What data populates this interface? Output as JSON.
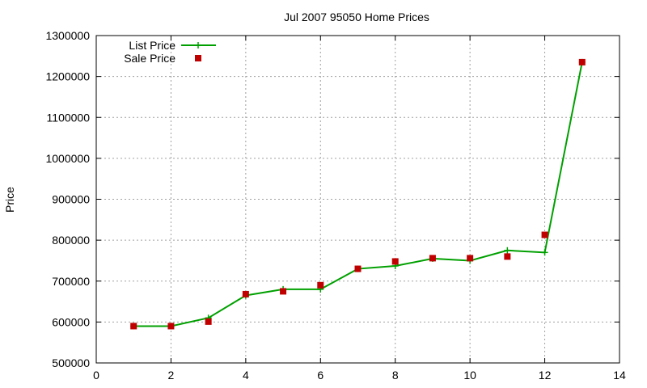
{
  "chart_data": {
    "type": "line",
    "title": "Jul 2007 95050 Home Prices",
    "xlabel": "",
    "ylabel": "Price",
    "xlim": [
      0,
      14
    ],
    "ylim": [
      500000,
      1300000
    ],
    "x_ticks": [
      0,
      2,
      4,
      6,
      8,
      10,
      12,
      14
    ],
    "y_ticks": [
      500000,
      600000,
      700000,
      800000,
      900000,
      1000000,
      1100000,
      1200000,
      1300000
    ],
    "x_tick_labels": [
      "0",
      "2",
      "4",
      "6",
      "8",
      "10",
      "12",
      "14"
    ],
    "y_tick_labels": [
      "500000",
      "600000",
      "700000",
      "800000",
      "900000",
      "1000000",
      "1100000",
      "1200000",
      "1300000"
    ],
    "grid": true,
    "legend_position": "top-left",
    "series": [
      {
        "name": "List Price",
        "style": "line-with-plus-markers",
        "color": "#00a000",
        "x": [
          1,
          2,
          3,
          4,
          5,
          6,
          7,
          8,
          9,
          10,
          11,
          12,
          13
        ],
        "values": [
          590000,
          590000,
          610000,
          665000,
          680000,
          680000,
          730000,
          737000,
          755000,
          750000,
          775000,
          770000,
          1235000
        ]
      },
      {
        "name": "Sale Price",
        "style": "square-markers",
        "color": "#c00000",
        "x": [
          1,
          2,
          3,
          4,
          5,
          6,
          7,
          8,
          9,
          10,
          11,
          12,
          13
        ],
        "values": [
          590000,
          590000,
          601000,
          668000,
          675000,
          690000,
          730000,
          748000,
          756000,
          756000,
          760000,
          813000,
          1235000
        ]
      }
    ]
  }
}
